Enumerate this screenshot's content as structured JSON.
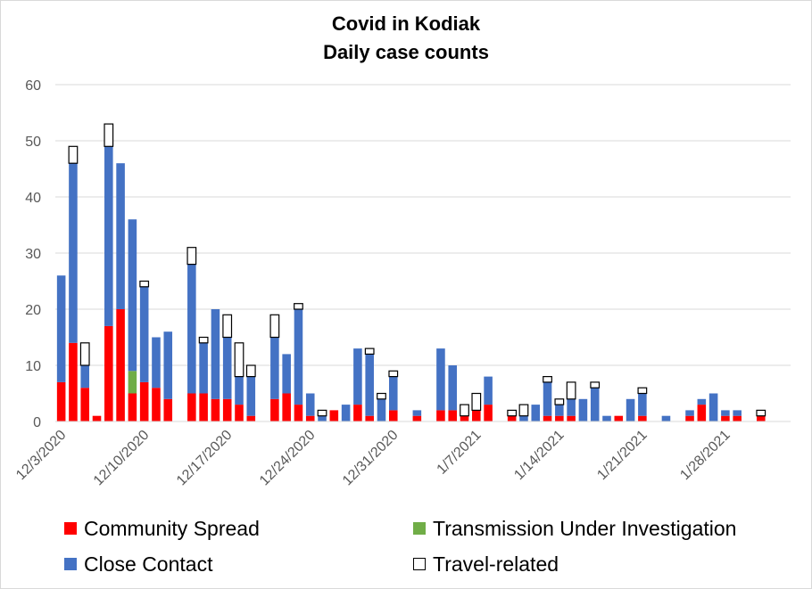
{
  "chart_data": {
    "type": "bar",
    "stacked": true,
    "title": "Covid in Kodiak",
    "subtitle": "Daily case counts",
    "xlabel": "",
    "ylabel": "",
    "ylim": [
      0,
      60
    ],
    "yticks": [
      0,
      10,
      20,
      30,
      40,
      50,
      60
    ],
    "grid": true,
    "legend_position": "bottom",
    "x_tick_labels": [
      "12/3/2020",
      "12/10/2020",
      "12/17/2020",
      "12/24/2020",
      "12/31/2020",
      "1/7/2021",
      "1/14/2021",
      "1/21/2021",
      "1/28/2021"
    ],
    "categories": [
      "12/3/2020",
      "12/4/2020",
      "12/5/2020",
      "12/6/2020",
      "12/7/2020",
      "12/8/2020",
      "12/9/2020",
      "12/10/2020",
      "12/11/2020",
      "12/12/2020",
      "12/13/2020",
      "12/14/2020",
      "12/15/2020",
      "12/16/2020",
      "12/17/2020",
      "12/18/2020",
      "12/19/2020",
      "12/20/2020",
      "12/21/2020",
      "12/22/2020",
      "12/23/2020",
      "12/24/2020",
      "12/25/2020",
      "12/26/2020",
      "12/27/2020",
      "12/28/2020",
      "12/29/2020",
      "12/30/2020",
      "12/31/2020",
      "1/1/2021",
      "1/2/2021",
      "1/3/2021",
      "1/4/2021",
      "1/5/2021",
      "1/6/2021",
      "1/7/2021",
      "1/8/2021",
      "1/9/2021",
      "1/10/2021",
      "1/11/2021",
      "1/12/2021",
      "1/13/2021",
      "1/14/2021",
      "1/15/2021",
      "1/16/2021",
      "1/17/2021",
      "1/18/2021",
      "1/19/2021",
      "1/20/2021",
      "1/21/2021",
      "1/22/2021",
      "1/23/2021",
      "1/24/2021",
      "1/25/2021",
      "1/26/2021",
      "1/27/2021",
      "1/28/2021",
      "1/29/2021",
      "1/30/2021",
      "1/31/2021",
      "2/1/2021",
      "2/2/2021"
    ],
    "series": [
      {
        "name": "Community Spread",
        "color": "#ff0000",
        "values": [
          7,
          14,
          6,
          1,
          17,
          20,
          5,
          7,
          6,
          4,
          0,
          5,
          5,
          4,
          4,
          3,
          1,
          0,
          4,
          5,
          3,
          1,
          0,
          2,
          0,
          3,
          1,
          0,
          2,
          0,
          1,
          0,
          2,
          2,
          1,
          2,
          3,
          0,
          1,
          0,
          0,
          1,
          1,
          1,
          0,
          0,
          0,
          1,
          0,
          1,
          0,
          0,
          0,
          1,
          3,
          0,
          1,
          1,
          0,
          1,
          0,
          0
        ]
      },
      {
        "name": "Transmission Under Investigation",
        "color": "#70ad47",
        "values": [
          0,
          0,
          0,
          0,
          0,
          0,
          4,
          0,
          0,
          0,
          0,
          0,
          0,
          0,
          0,
          0,
          0,
          0,
          0,
          0,
          0,
          0,
          0,
          0,
          0,
          0,
          0,
          0,
          0,
          0,
          0,
          0,
          0,
          0,
          0,
          0,
          0,
          0,
          0,
          0,
          0,
          0,
          0,
          0,
          0,
          0,
          0,
          0,
          0,
          0,
          0,
          0,
          0,
          0,
          0,
          0,
          0,
          0,
          0,
          0,
          0,
          0
        ]
      },
      {
        "name": "Close Contact",
        "color": "#4472c4",
        "values": [
          19,
          32,
          4,
          0,
          32,
          26,
          27,
          17,
          9,
          12,
          0,
          23,
          9,
          16,
          11,
          5,
          7,
          0,
          11,
          7,
          17,
          4,
          1,
          0,
          3,
          10,
          11,
          4,
          6,
          0,
          1,
          0,
          11,
          8,
          0,
          0,
          5,
          0,
          0,
          1,
          3,
          6,
          2,
          3,
          4,
          6,
          1,
          0,
          4,
          4,
          0,
          1,
          0,
          1,
          1,
          5,
          1,
          1,
          0,
          0,
          0,
          0
        ]
      },
      {
        "name": "Travel-related",
        "color": "#ffffff",
        "values": [
          0,
          3,
          4,
          0,
          4,
          0,
          0,
          1,
          0,
          0,
          0,
          3,
          1,
          0,
          4,
          6,
          2,
          0,
          4,
          0,
          1,
          0,
          1,
          0,
          0,
          0,
          1,
          1,
          1,
          0,
          0,
          0,
          0,
          0,
          2,
          3,
          0,
          0,
          1,
          2,
          0,
          1,
          1,
          3,
          0,
          1,
          0,
          0,
          0,
          1,
          0,
          0,
          0,
          0,
          0,
          0,
          0,
          0,
          0,
          1,
          0,
          0
        ]
      }
    ]
  },
  "legend": {
    "community": "Community Spread",
    "investigation": "Transmission Under Investigation",
    "close_contact": "Close Contact",
    "travel": "Travel-related"
  }
}
